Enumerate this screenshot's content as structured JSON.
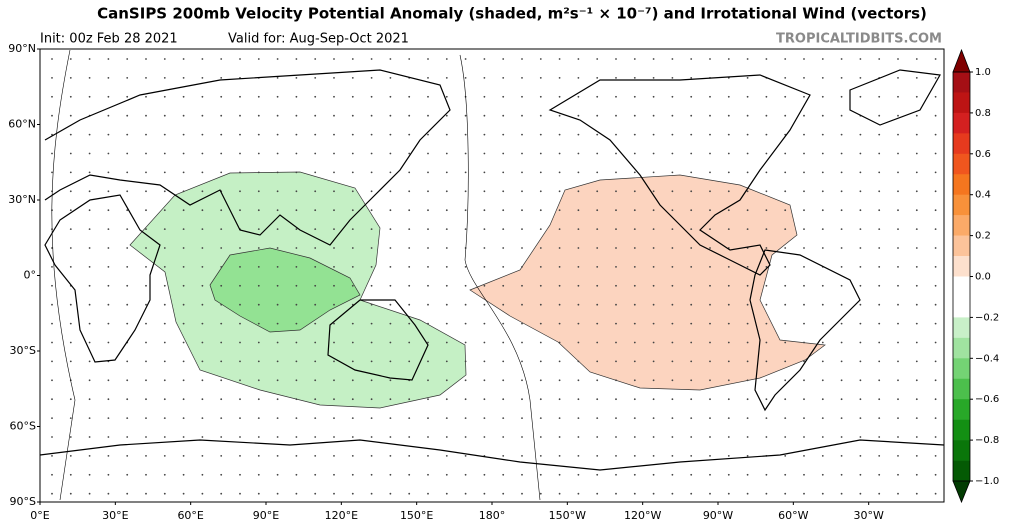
{
  "header": {
    "title": "CanSIPS 200mb Velocity Potential Anomaly (shaded, m²s⁻¹ × 10⁻⁷) and Irrotational Wind (vectors)",
    "init": "Init: 00z Feb 28 2021",
    "valid": "Valid for: Aug-Sep-Oct 2021",
    "source": "TROPICALTIDBITS.COM"
  },
  "map": {
    "lat_labels": [
      "90°N",
      "60°N",
      "30°N",
      "0°",
      "30°S",
      "60°S",
      "90°S"
    ],
    "lon_labels": [
      "0°E",
      "30°E",
      "60°E",
      "90°E",
      "120°E",
      "150°E",
      "180°",
      "150°W",
      "120°W",
      "90°W",
      "60°W",
      "30°W"
    ]
  },
  "colorbar": {
    "lim": [
      -1,
      1
    ],
    "colors": [
      "#a50f15",
      "#bd1414",
      "#d42020",
      "#e63a1e",
      "#f0561e",
      "#f5761f",
      "#f8913a",
      "#fbaa68",
      "#fcc39a",
      "#fde0cd",
      "#ffffff",
      "#ffffff",
      "#c8f0c8",
      "#a0e3a0",
      "#74d374",
      "#4cbf4c",
      "#28a828",
      "#138f13",
      "#0a760a",
      "#045a04"
    ],
    "top_color": "#7f0000",
    "bottom_color": "#023c02",
    "ticks": [
      {
        "value": 1,
        "label": "1.0"
      },
      {
        "value": 0.8,
        "label": "0.8"
      },
      {
        "value": 0.6,
        "label": "0.6"
      },
      {
        "value": 0.4,
        "label": "0.4"
      },
      {
        "value": 0.2,
        "label": "0.2"
      },
      {
        "value": 0,
        "label": "0.0"
      },
      {
        "value": -0.2,
        "label": "−0.2"
      },
      {
        "value": -0.4,
        "label": "−0.4"
      },
      {
        "value": -0.6,
        "label": "−0.6"
      },
      {
        "value": -0.8,
        "label": "−0.8"
      },
      {
        "value": -1,
        "label": "−1.0"
      }
    ]
  }
}
